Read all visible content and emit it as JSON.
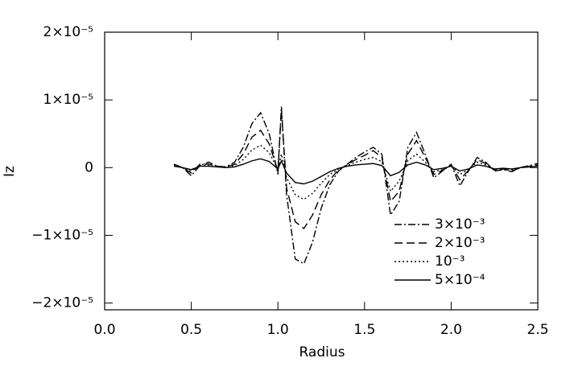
{
  "chart_data": {
    "type": "line",
    "xlabel": "Radius",
    "ylabel": "Iz",
    "xlim": [
      0,
      2.5
    ],
    "ylim": [
      -2.1e-05,
      2e-05
    ],
    "xticks": [
      {
        "value": 0,
        "label": "0.0"
      },
      0.5,
      {
        "value": 1,
        "label": "1.0"
      },
      1.5,
      {
        "value": 2,
        "label": "2.0"
      },
      2.5
    ],
    "yticks": [
      {
        "value": 2e-05,
        "label": "2×10⁻⁵"
      },
      {
        "value": 1e-05,
        "label": "1×10⁻⁵"
      },
      0,
      {
        "value": -1e-05,
        "label": "−1×10⁻⁵"
      },
      {
        "value": -2e-05,
        "label": "−2×10⁻⁵"
      }
    ],
    "x": [
      0.4,
      0.45,
      0.5,
      0.55,
      0.6,
      0.65,
      0.7,
      0.75,
      0.8,
      0.85,
      0.9,
      0.95,
      1.0,
      1.02,
      1.05,
      1.1,
      1.15,
      1.2,
      1.25,
      1.3,
      1.35,
      1.4,
      1.45,
      1.5,
      1.55,
      1.6,
      1.65,
      1.7,
      1.75,
      1.8,
      1.85,
      1.9,
      1.95,
      2.0,
      2.05,
      2.1,
      2.15,
      2.2,
      2.25,
      2.3,
      2.35,
      2.4,
      2.45,
      2.5
    ],
    "series": [
      {
        "name": "3×10⁻³",
        "color": "#000000",
        "dash": "9 3 2 3",
        "values": [
          5e-07,
          0,
          -1.2e-06,
          3e-07,
          8e-07,
          2e-07,
          1e-07,
          8e-07,
          3e-06,
          6.5e-06,
          8.1e-06,
          5e-06,
          -1e-06,
          9e-06,
          -4e-06,
          -1.35e-05,
          -1.42e-05,
          -1.1e-05,
          -6e-06,
          -2.5e-06,
          -5e-07,
          5e-07,
          1.5e-06,
          2.3e-06,
          3e-06,
          2e-06,
          -7e-06,
          -5e-06,
          3e-06,
          5.2e-06,
          2e-06,
          -1.5e-06,
          -5e-07,
          5e-07,
          -2.7e-06,
          -5e-07,
          1.5e-06,
          8e-07,
          -5e-07,
          -3e-07,
          -6e-07,
          0,
          3e-07,
          6e-07
        ]
      },
      {
        "name": "2×10⁻³",
        "color": "#000000",
        "dash": "10 5",
        "values": [
          5e-07,
          0,
          -8e-07,
          5e-07,
          5e-07,
          2e-07,
          1e-07,
          5e-07,
          2e-06,
          4.5e-06,
          5.5e-06,
          3.5e-06,
          -5e-07,
          8.5e-06,
          -3e-06,
          -8e-06,
          -9e-06,
          -7e-06,
          -4e-06,
          -1.8e-06,
          -3e-07,
          4e-07,
          1.2e-06,
          1.8e-06,
          2.5e-06,
          1.5e-06,
          -5e-06,
          -3.5e-06,
          2e-06,
          4e-06,
          1.5e-06,
          -1e-06,
          -4e-07,
          4e-07,
          -1.8e-06,
          -4e-07,
          1.2e-06,
          6e-07,
          -4e-07,
          -2e-07,
          -5e-07,
          0,
          2e-07,
          4e-07
        ]
      },
      {
        "name": "10⁻³",
        "color": "#000000",
        "dash": "2 3",
        "values": [
          3e-07,
          0,
          -5e-07,
          3e-07,
          3e-07,
          1e-07,
          1e-07,
          3e-07,
          1.2e-06,
          2.6e-06,
          3.3e-06,
          2.2e-06,
          -3e-07,
          2e-06,
          -1.5e-06,
          -4e-06,
          -4.7e-06,
          -3.8e-06,
          -2.3e-06,
          -1e-06,
          -2e-07,
          3e-07,
          8e-07,
          1.2e-06,
          1.5e-06,
          9e-07,
          -3.5e-06,
          -2e-06,
          1e-06,
          2e-06,
          8e-07,
          -6e-07,
          -3e-07,
          3e-07,
          -1e-06,
          -3e-07,
          8e-07,
          4e-07,
          -3e-07,
          -1e-07,
          -3e-07,
          0,
          1e-07,
          3e-07
        ]
      },
      {
        "name": "5×10⁻⁴",
        "color": "#000000",
        "dash": "none",
        "values": [
          2e-07,
          0,
          -3e-07,
          2e-07,
          2e-07,
          1e-07,
          0,
          1e-07,
          5e-07,
          1e-06,
          1.3e-06,
          9e-07,
          -2e-07,
          1e-06,
          -8e-07,
          -2.2e-06,
          -2.4e-06,
          -2e-06,
          -1.3e-06,
          -6e-07,
          -1e-07,
          2e-07,
          4e-07,
          5e-07,
          6e-07,
          3e-07,
          -1.2e-06,
          -7e-07,
          4e-07,
          8e-07,
          4e-07,
          -3e-07,
          -1e-07,
          2e-07,
          -5e-07,
          -2e-07,
          4e-07,
          2e-07,
          -2e-07,
          -1e-07,
          -2e-07,
          0,
          1e-07,
          2e-07
        ]
      }
    ]
  }
}
